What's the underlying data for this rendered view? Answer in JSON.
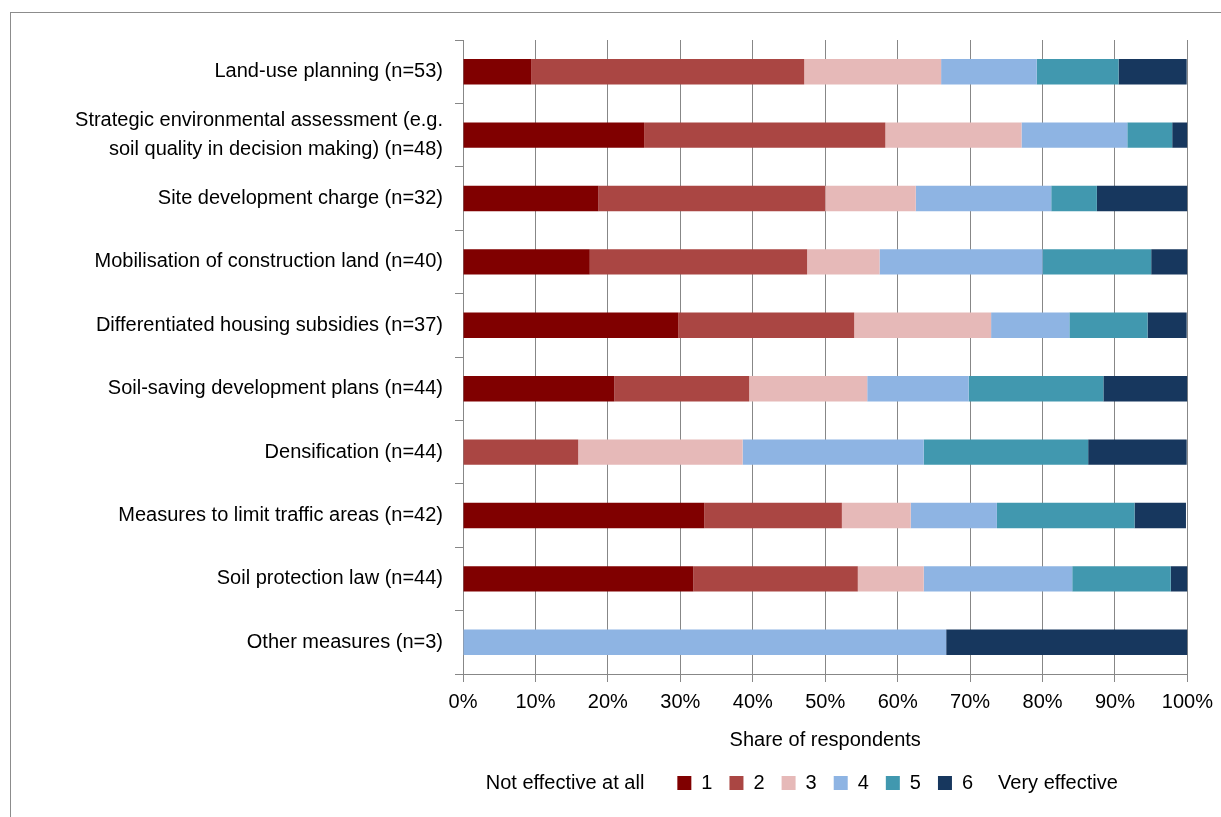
{
  "chart_data": {
    "type": "bar",
    "orientation": "horizontal",
    "stacked": true,
    "categories": [
      "Land-use planning (n=53)",
      "Strategic environmental assessment (e.g. soil quality in decision making) (n=48)",
      "Site development charge (n=32)",
      "Mobilisation of construction land (n=40)",
      "Differentiated housing subsidies (n=37)",
      "Soil-saving development plans (n=44)",
      "Densification (n=44)",
      "Measures to limit traffic areas (n=42)",
      "Soil protection law (n=44)",
      "Other measures (n=3)"
    ],
    "series": [
      {
        "name": "1",
        "color": "#800000",
        "values": [
          9.4,
          25.0,
          18.7,
          17.5,
          29.7,
          20.9,
          0,
          33.3,
          31.8,
          0
        ]
      },
      {
        "name": "2",
        "color": "#aa4643",
        "values": [
          37.7,
          33.3,
          31.3,
          30.0,
          24.3,
          18.6,
          15.9,
          19.0,
          22.7,
          0
        ]
      },
      {
        "name": "3",
        "color": "#e6b9b8",
        "values": [
          18.9,
          18.8,
          12.5,
          10.0,
          18.9,
          16.3,
          22.7,
          9.5,
          9.1,
          0
        ]
      },
      {
        "name": "4",
        "color": "#8eb4e3",
        "values": [
          13.2,
          14.6,
          18.7,
          22.5,
          10.8,
          14.0,
          25.0,
          11.9,
          20.5,
          66.7
        ]
      },
      {
        "name": "5",
        "color": "#4198af",
        "values": [
          11.3,
          6.2,
          6.3,
          15.0,
          10.8,
          18.6,
          22.7,
          19.0,
          13.6,
          0
        ]
      },
      {
        "name": "6",
        "color": "#17375e",
        "values": [
          9.4,
          2.1,
          12.5,
          5.0,
          5.4,
          11.6,
          13.6,
          7.1,
          2.3,
          33.3
        ]
      }
    ],
    "xlabel": "Share of respondents",
    "xlim": [
      0,
      100
    ],
    "xticks": [
      {
        "value": 0,
        "label": "0%"
      },
      {
        "value": 10,
        "label": "10%"
      },
      {
        "value": 20,
        "label": "20%"
      },
      {
        "value": 30,
        "label": "30%"
      },
      {
        "value": 40,
        "label": "40%"
      },
      {
        "value": 50,
        "label": "50%"
      },
      {
        "value": 60,
        "label": "60%"
      },
      {
        "value": 70,
        "label": "70%"
      },
      {
        "value": 80,
        "label": "80%"
      },
      {
        "value": 90,
        "label": "90%"
      },
      {
        "value": 100,
        "label": "100%"
      }
    ],
    "grid": "x",
    "legend": "bottom",
    "annotations": [
      "Not effective at all",
      "Very effective"
    ]
  }
}
